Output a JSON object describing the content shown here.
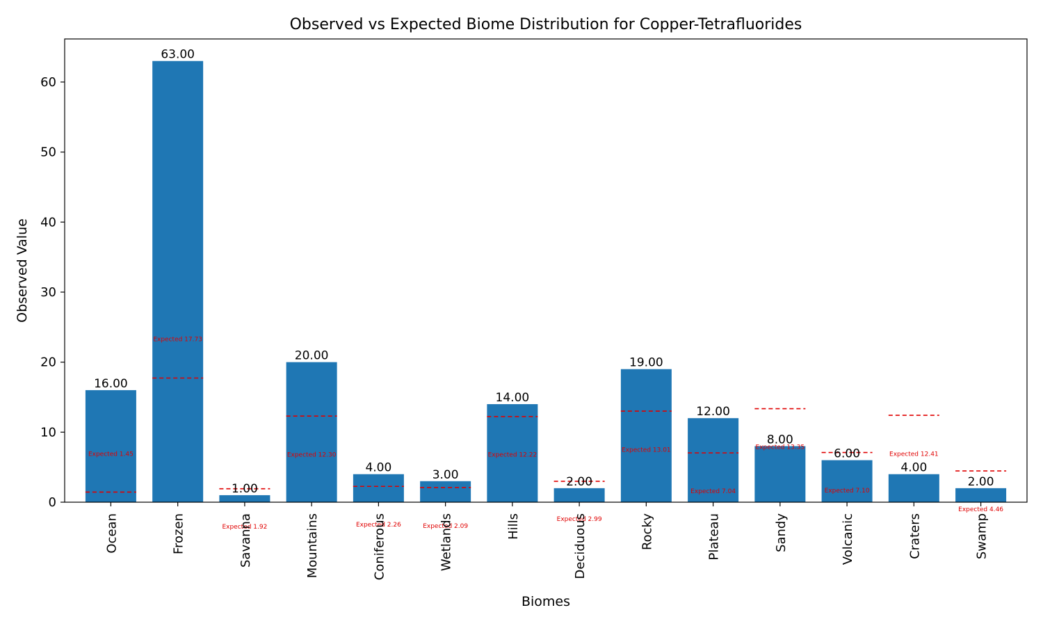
{
  "chart_data": {
    "type": "bar",
    "title": "Observed vs Expected Biome Distribution for Copper-Tetrafluorides",
    "xlabel": "Biomes",
    "ylabel": "Observed Value",
    "ylim": [
      0,
      66.15
    ],
    "yticks": [
      0,
      10,
      20,
      30,
      40,
      50,
      60
    ],
    "grid": false,
    "categories": [
      "Ocean",
      "Frozen",
      "Savanna",
      "Mountains",
      "Coniferous",
      "Wetlands",
      "Hills",
      "Deciduous",
      "Rocky",
      "Plateau",
      "Sandy",
      "Volcanic",
      "Craters",
      "Swamp"
    ],
    "series": [
      {
        "values": [
          16,
          63,
          1,
          20,
          4,
          3,
          14,
          2,
          19,
          12,
          8,
          6,
          4,
          2
        ],
        "labels": [
          "16.00",
          "63.00",
          "1.00",
          "20.00",
          "4.00",
          "3.00",
          "14.00",
          "2.00",
          "19.00",
          "12.00",
          "8.00",
          "6.00",
          "4.00",
          "2.00"
        ]
      }
    ],
    "expected": {
      "values": [
        1.45,
        17.73,
        1.92,
        12.3,
        2.26,
        2.09,
        12.22,
        2.99,
        13.01,
        7.04,
        13.35,
        7.1,
        12.41,
        4.46
      ],
      "labels": [
        "Expected 1.45",
        "Expected 17.73",
        "Expected 1.92",
        "Expected 12.30",
        "Expected 2.26",
        "Expected 2.09",
        "Expected 12.22",
        "Expected 2.99",
        "Expected 13.01",
        "Expected 7.04",
        "Expected 13.35",
        "Expected 7.10",
        "Expected 12.41",
        "Expected 4.46"
      ],
      "label_y": [
        6.9,
        23.3,
        -3.5,
        6.8,
        -3.2,
        -3.4,
        6.8,
        -2.4,
        7.5,
        1.6,
        7.9,
        1.7,
        6.9,
        -1.0
      ]
    },
    "colors": {
      "bar": "#1f77b4",
      "expected": "#e00000"
    }
  }
}
